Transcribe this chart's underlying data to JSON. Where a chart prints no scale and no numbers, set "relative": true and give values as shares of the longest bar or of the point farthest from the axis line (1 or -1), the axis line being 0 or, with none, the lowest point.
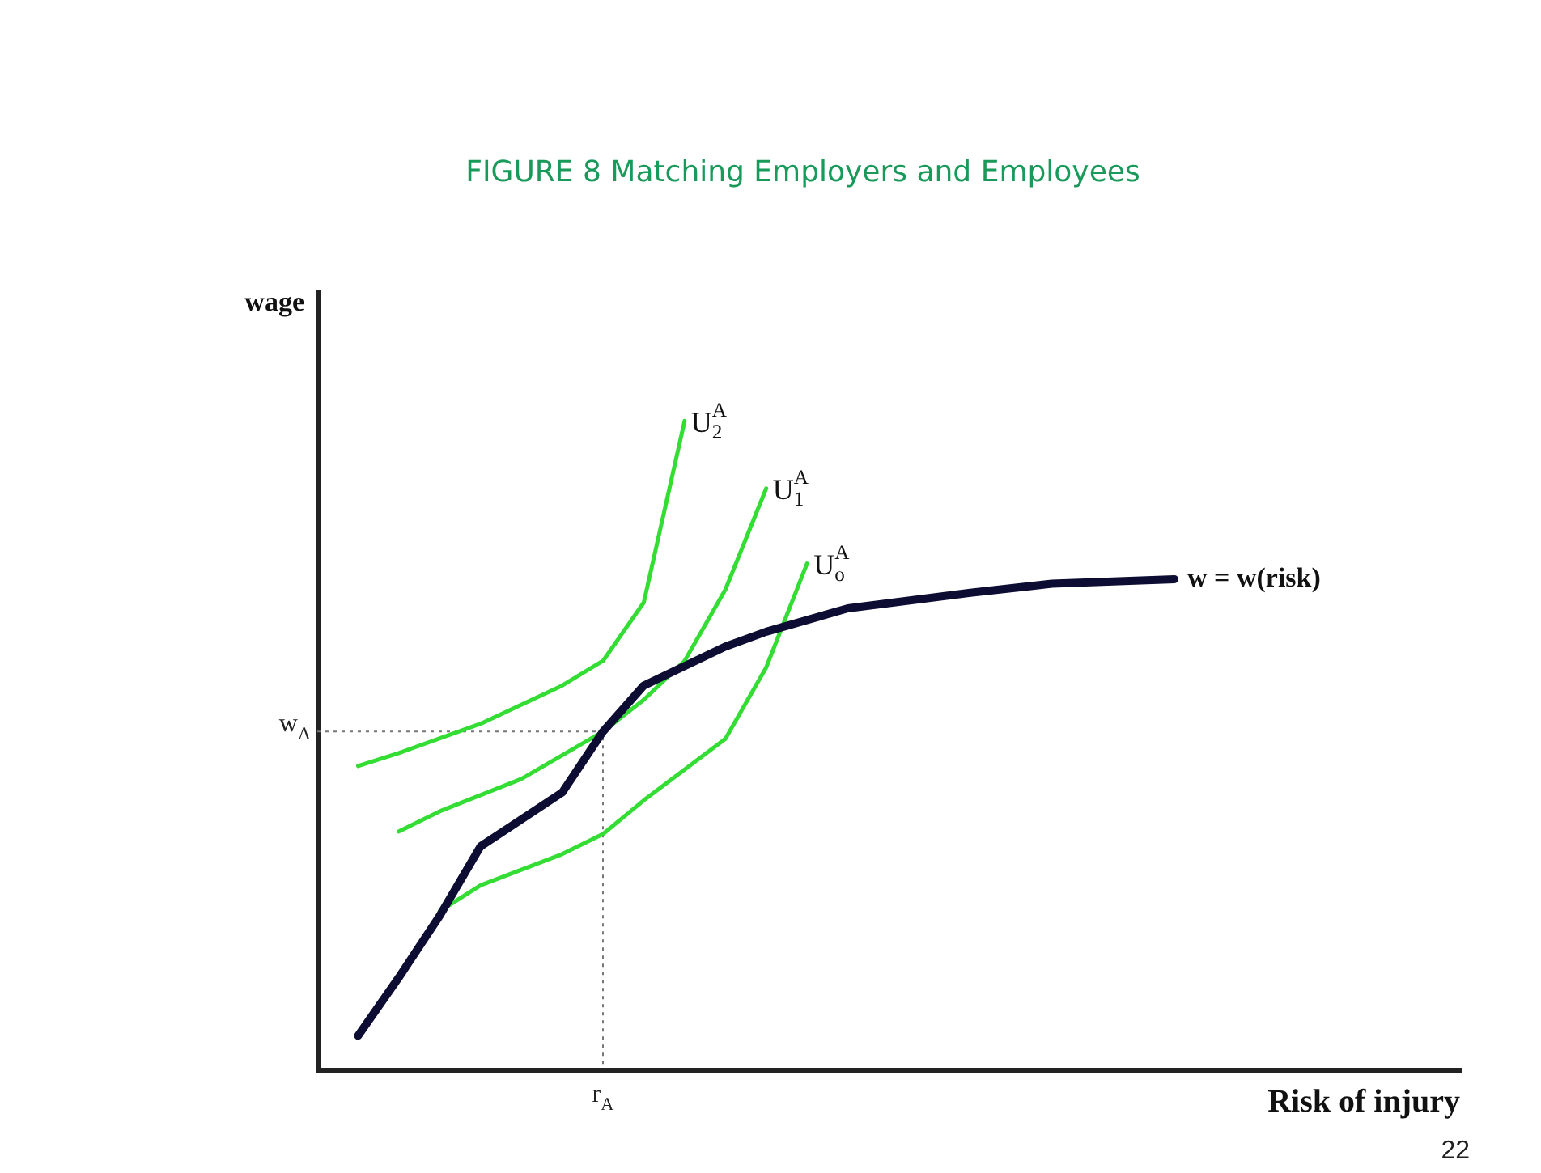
{
  "chart_data": {
    "type": "line",
    "title": "FIGURE 8 Matching Employers and Employees",
    "xlabel": "Risk of injury",
    "ylabel": "wage",
    "relative": true,
    "grid": false,
    "legend": false,
    "marker": "none",
    "line_style": "solid",
    "categories": [
      null,
      null,
      null,
      null,
      null,
      null,
      null,
      null,
      null,
      null,
      null,
      null,
      null,
      null,
      null,
      null,
      null,
      null,
      null,
      null,
      null,
      null,
      null,
      null,
      null,
      null,
      null,
      null,
      null
    ],
    "series": [
      {
        "name": "w = w(risk)",
        "color": "#0d0d33",
        "values": [
          null,
          0.052,
          0.142,
          0.237,
          0.344,
          null,
          0.427,
          0.521,
          0.592,
          null,
          0.652,
          0.675,
          null,
          0.711,
          null,
          null,
          0.735,
          null,
          0.749,
          null,
          null,
          0.756,
          null,
          null,
          null,
          null,
          null,
          null,
          null
        ]
      },
      {
        "name": "U$_{o}$$^{A}$",
        "color": "#33dd33",
        "values": [
          null,
          null,
          null,
          0.244,
          0.284,
          null,
          0.332,
          0.363,
          0.415,
          null,
          0.51,
          0.62,
          0.78,
          null,
          null,
          null,
          null,
          null,
          null,
          null,
          null,
          null,
          null,
          null,
          null,
          null,
          null,
          null,
          null
        ]
      },
      {
        "name": "U$_{1}$$^{A}$",
        "color": "#33dd33",
        "values": [
          null,
          null,
          0.367,
          0.398,
          null,
          0.448,
          null,
          0.521,
          0.57,
          0.63,
          0.74,
          0.896,
          null,
          null,
          null,
          null,
          null,
          null,
          null,
          null,
          null,
          null,
          null,
          null,
          null,
          null,
          null,
          null,
          null
        ]
      },
      {
        "name": "U$_{2}$$^{A}$",
        "color": "#33dd33",
        "values": [
          null,
          0.468,
          0.488,
          null,
          0.533,
          null,
          0.592,
          0.63,
          0.72,
          1.0,
          null,
          null,
          null,
          null,
          null,
          null,
          null,
          null,
          null,
          null,
          null,
          null,
          null,
          null,
          null,
          null,
          null,
          null,
          null
        ]
      }
    ],
    "ref_lines": [
      {
        "axis": "y",
        "value": 0.521,
        "label": "w$_{A}$",
        "color": "#777777",
        "line_style": "dotted"
      }
    ],
    "annotations": [
      {
        "text": "r$_{A}$",
        "y": 0
      },
      "22"
    ]
  }
}
